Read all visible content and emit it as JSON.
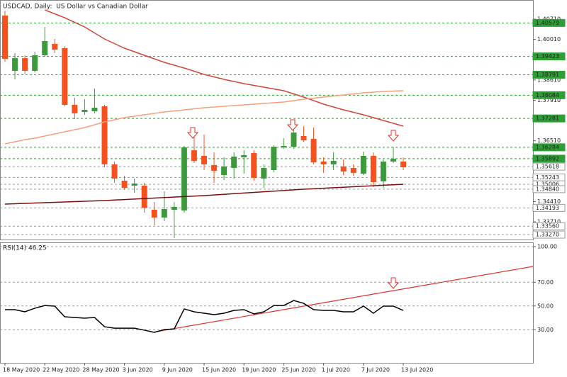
{
  "chart_data": [
    {
      "type": "candlestick",
      "title": "USDCAD, Daily:  US Dollar vs Canadian Dollar",
      "categories": [
        "18 May 2020",
        null,
        null,
        null,
        "22 May 2020",
        null,
        null,
        null,
        "28 May 2020",
        null,
        null,
        null,
        "3 Jun 2020",
        null,
        null,
        null,
        "9 Jun 2020",
        null,
        null,
        null,
        "15 Jun 2020",
        null,
        null,
        null,
        "19 Jun 2020",
        null,
        null,
        null,
        "25 Jun 2020",
        null,
        null,
        null,
        "1 Jul 2020",
        null,
        null,
        null,
        "7 Jul 2020",
        null,
        null,
        null,
        "13 Jul 2020"
      ],
      "open": [
        1.40833,
        1.38924,
        1.39364,
        1.38924,
        1.39462,
        1.39854,
        1.39707,
        1.37749,
        1.37505,
        1.37529,
        1.37701,
        1.35694,
        1.35131,
        1.3496,
        1.3496,
        1.34128,
        1.33859,
        1.34128,
        1.34103,
        1.36183,
        1.35988,
        1.3567,
        1.35327,
        1.35572,
        1.35939,
        1.36085,
        1.35205,
        1.35498,
        1.36281,
        1.36306,
        1.36673,
        1.36575,
        1.35792,
        1.35694,
        1.35621,
        1.35572,
        1.35376,
        1.35988,
        1.35107,
        1.35792,
        1.35792
      ],
      "high": [
        1.41004,
        1.39536,
        1.39462,
        1.39585,
        1.40441,
        1.40025,
        1.39781,
        1.37994,
        1.37945,
        1.38312,
        1.37749,
        1.35792,
        1.35303,
        1.35205,
        1.35058,
        1.34397,
        1.34764,
        1.34397,
        1.3633,
        1.36917,
        1.36722,
        1.3611,
        1.35939,
        1.3611,
        1.36183,
        1.36183,
        1.35694,
        1.36355,
        1.36599,
        1.37162,
        1.37015,
        1.36966,
        1.35939,
        1.3611,
        1.35865,
        1.35694,
        1.36134,
        1.3611,
        1.35865,
        1.36306,
        1.35939
      ],
      "low": [
        1.39242,
        1.3863,
        1.38826,
        1.38875,
        1.39413,
        1.39536,
        1.37701,
        1.3726,
        1.37407,
        1.37456,
        1.35596,
        1.35058,
        1.34813,
        1.34715,
        1.3403,
        1.3359,
        1.33736,
        1.33149,
        1.3403,
        1.35743,
        1.35498,
        1.35058,
        1.35156,
        1.35205,
        1.35376,
        1.35131,
        1.34886,
        1.35425,
        1.36232,
        1.36232,
        1.36477,
        1.35694,
        1.354,
        1.35498,
        1.35327,
        1.35303,
        1.35327,
        1.34911,
        1.34886,
        1.35743,
        1.35498
      ],
      "close": [
        1.3934,
        1.39364,
        1.38924,
        1.39462,
        1.39952,
        1.39658,
        1.37749,
        1.37457,
        1.37578,
        1.37652,
        1.35694,
        1.35205,
        1.34886,
        1.35033,
        1.34201,
        1.33859,
        1.34152,
        1.34226,
        1.36281,
        1.35816,
        1.35694,
        1.35474,
        1.35621,
        1.35963,
        1.36012,
        1.35229,
        1.35572,
        1.36306,
        1.3633,
        1.36795,
        1.36526,
        1.35767,
        1.35694,
        1.35816,
        1.3545,
        1.354,
        1.35988,
        1.35082,
        1.35792,
        1.3589,
        1.35596
      ],
      "up_color": "#3c9a3c",
      "down_color": "#f4511e",
      "series": [
        {
          "color": "#d2453c",
          "values": [
            null,
            null,
            null,
            null,
            1.41028,
            1.40894,
            1.40759,
            1.406,
            1.40441,
            1.40233,
            1.40025,
            1.39866,
            1.39707,
            1.39585,
            1.39462,
            1.3934,
            1.39218,
            1.3912,
            1.39022,
            1.38912,
            1.38802,
            1.38716,
            1.3863,
            1.38557,
            1.38484,
            1.38423,
            1.38361,
            1.383,
            1.38239,
            1.38129,
            1.38019,
            1.37897,
            1.37774,
            1.37676,
            1.37578,
            1.37493,
            1.37407,
            1.37309,
            1.37211,
            1.37113,
            1.37015
          ]
        },
        {
          "color": "#f5a07a",
          "values": [
            1.36404,
            1.36477,
            1.3655,
            1.36599,
            1.36673,
            1.36746,
            1.3682,
            1.36893,
            1.36966,
            1.37064,
            1.37162,
            1.37236,
            1.37309,
            1.37358,
            1.37407,
            1.37456,
            1.37505,
            1.37541,
            1.37578,
            1.37615,
            1.37652,
            1.37676,
            1.377,
            1.37725,
            1.37749,
            1.37774,
            1.37798,
            1.37823,
            1.37847,
            1.37896,
            1.37945,
            1.37982,
            1.38019,
            1.38055,
            1.38092,
            1.38129,
            1.38165,
            1.3819,
            1.38214,
            1.38227,
            1.38239
          ]
        },
        {
          "color": "#7b1010",
          "values": [
            1.34324,
            1.34336,
            1.34348,
            1.34361,
            1.34373,
            1.34385,
            1.34397,
            1.3441,
            1.34422,
            1.34434,
            1.34446,
            1.34463,
            1.3448,
            1.34497,
            1.34514,
            1.34532,
            1.34549,
            1.34566,
            1.34583,
            1.346,
            1.34617,
            1.34639,
            1.34661,
            1.34683,
            1.34705,
            1.34727,
            1.34749,
            1.34771,
            1.34793,
            1.34815,
            1.34837,
            1.34854,
            1.34871,
            1.34888,
            1.34905,
            1.34922,
            1.3494,
            1.34957,
            1.34974,
            1.34991,
            1.35008
          ]
        }
      ],
      "ylim": [
        1.331,
        1.41371
      ],
      "yticks": [
        {
          "value": 1.4071,
          "label": "1.40710"
        },
        {
          "value": 1.4001,
          "label": "1.40010"
        },
        {
          "value": 1.3861,
          "label": "1.38610"
        },
        {
          "value": 1.3791,
          "label": "1.37910"
        },
        {
          "value": 1.3651,
          "label": "1.36510"
        },
        {
          "value": 1.3441,
          "label": "1.34410"
        },
        {
          "value": 1.3371,
          "label": "1.33710"
        }
      ],
      "levels": [
        {
          "value": 1.40579,
          "label": "1.40579",
          "color": "#2f9e36"
        },
        {
          "value": 1.39423,
          "label": "1.39423",
          "color": "#2f9e36"
        },
        {
          "value": 1.38791,
          "label": "1.38791",
          "color": "#2f9e36"
        },
        {
          "value": 1.38084,
          "label": "1.38084",
          "color": "#2f9e36"
        },
        {
          "value": 1.37281,
          "label": "1.37281",
          "color": "#2f9e36"
        },
        {
          "value": 1.36284,
          "label": "1.36284",
          "color": "#2f9e36"
        },
        {
          "value": 1.35892,
          "label": "1.35892",
          "color": "#2f9e36"
        },
        {
          "value": 1.35618,
          "label": "1.35618",
          "color": "#9a9a9a"
        },
        {
          "value": 1.35243,
          "label": "1.35243",
          "color": "#9a9a9a"
        },
        {
          "value": 1.35006,
          "label": "1.35006",
          "color": "#9a9a9a"
        },
        {
          "value": 1.3484,
          "label": "1.34840",
          "color": "#9a9a9a"
        },
        {
          "value": 1.34193,
          "label": "1.34193",
          "color": "#9a9a9a"
        },
        {
          "value": 1.3356,
          "label": "1.33560",
          "color": "#9a9a9a"
        },
        {
          "value": 1.3327,
          "label": "1.33270",
          "color": "#9a9a9a"
        }
      ]
    },
    {
      "type": "line",
      "title": "RSI(14) 46.25",
      "values": [
        46.9,
        46.9,
        45.1,
        48.1,
        50.4,
        49.9,
        40.9,
        40.3,
        39.7,
        40.3,
        32.5,
        31.3,
        31.3,
        31.3,
        29.6,
        27.8,
        30.1,
        30.7,
        47.5,
        45.1,
        43.9,
        42.7,
        43.9,
        46.3,
        46.9,
        43.3,
        45.1,
        50.4,
        50.4,
        54.6,
        52.2,
        46.9,
        46.3,
        46.3,
        45.1,
        45.1,
        49.9,
        43.9,
        49.9,
        49.9,
        46.25
      ],
      "color": "#000000",
      "ylim": [
        2.1,
        103.6
      ],
      "yticks": [
        {
          "value": 100,
          "label": "100.00"
        },
        {
          "value": 70,
          "label": "70.00"
        },
        {
          "value": 50,
          "label": "50.00"
        },
        {
          "value": 30,
          "label": "30.00"
        }
      ],
      "grid": true
    }
  ]
}
